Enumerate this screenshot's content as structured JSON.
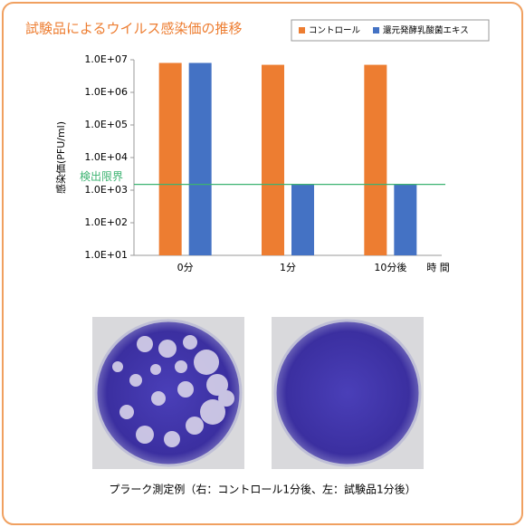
{
  "chart_data": {
    "type": "bar",
    "title": "試験品によるウイルス感染価の推移",
    "y_label": "感染価(PFU/ml)",
    "x_label": "時 間",
    "categories": [
      "0分",
      "1分",
      "10分後"
    ],
    "series": [
      {
        "name": "コントロール",
        "color": "#ed7d31",
        "values": [
          8000000,
          7000000,
          7000000
        ]
      },
      {
        "name": "還元発酵乳酸菌エキス",
        "color": "#4472c4",
        "values": [
          8000000,
          1500,
          1500
        ]
      }
    ],
    "ylim": [
      10,
      10000000
    ],
    "log_scale": true,
    "yticks": [
      {
        "value": 10,
        "label": "1.0E+01"
      },
      {
        "value": 100,
        "label": "1.0E+02"
      },
      {
        "value": 1000,
        "label": "1.0E+03"
      },
      {
        "value": 10000,
        "label": "1.0E+04"
      },
      {
        "value": 100000,
        "label": "1.0E+05"
      },
      {
        "value": 1000000,
        "label": "1.0E+06"
      },
      {
        "value": 10000000,
        "label": "1.0E+07"
      }
    ],
    "threshold": {
      "label": "検出限界",
      "value": 1500,
      "color": "#3cb371"
    },
    "legend_position": "top-right"
  },
  "caption": "プラーク測定例（右：コントロール1分後、左：試験品1分後）"
}
